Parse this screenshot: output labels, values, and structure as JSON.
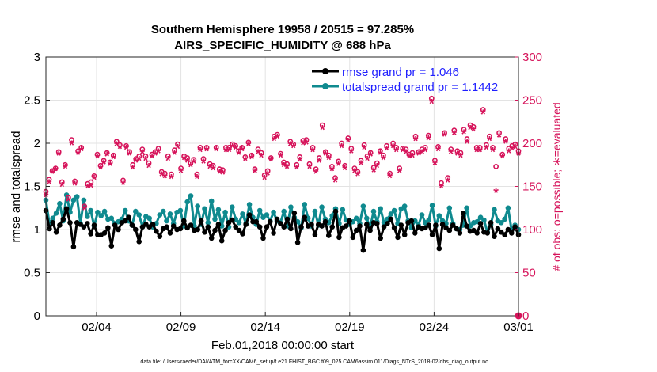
{
  "chart_data": {
    "type": "line",
    "title": "Southern Hemisphere 19958 / 20515 = 97.285%",
    "subtitle": "AIRS_SPECIFIC_HUMIDITY @ 688 hPa",
    "xlabel": "Feb.01,2018 00:00:00 start",
    "ylabel_left": "rmse and totalspread",
    "ylabel_right": "# of obs: o=possible; ∗=evaluated",
    "footnote": "data file: /Users/raeder/DAI/ATM_forcXX/CAM6_setup/f.e21.FHIST_BGC.f09_025.CAM6assim.011/Diags_NTrS_2018-02/obs_diag_output.nc",
    "xlim": [
      1.0,
      29.0
    ],
    "ylim_left": [
      0,
      3
    ],
    "ylim_right": [
      0,
      300
    ],
    "x_ticks": [
      4,
      9,
      14,
      19,
      24,
      29
    ],
    "x_tick_labels": [
      "02/04",
      "02/09",
      "02/14",
      "02/19",
      "02/24",
      "03/01"
    ],
    "y_ticks_left": [
      0,
      0.5,
      1,
      1.5,
      2,
      2.5,
      3
    ],
    "y_tick_labels_left": [
      "0",
      "0.5",
      "1",
      "1.5",
      "2",
      "2.5",
      "3"
    ],
    "y_ticks_right": [
      0,
      50,
      100,
      150,
      200,
      250,
      300
    ],
    "y_tick_labels_right": [
      "0",
      "50",
      "100",
      "150",
      "200",
      "250",
      "300"
    ],
    "grid": true,
    "legend_location": "top-right",
    "colors": {
      "rmse": "#000000",
      "spread": "#0f8a8f",
      "obs": "#d6135a",
      "legend_text": "#1f1fff"
    },
    "series": [
      {
        "name": "rmse grand pr = 1.046",
        "axis": "left",
        "values": [
          1.22,
          1.01,
          1.08,
          0.97,
          1.05,
          1.12,
          1.24,
          1.08,
          0.8,
          1.08,
          1.06,
          1.03,
          1.07,
          0.95,
          1.05,
          0.94,
          0.94,
          0.96,
          1.02,
          0.81,
          1.05,
          1.0,
          1.08,
          1.1,
          1.14,
          1.05,
          1.0,
          0.86,
          1.03,
          1.06,
          1.03,
          1.06,
          0.98,
          0.92,
          1.01,
          1.03,
          0.96,
          1.04,
          1.0,
          1.01,
          1.1,
          1.02,
          1.05,
          0.99,
          1.0,
          1.1,
          0.97,
          1.03,
          0.9,
          0.99,
          1.06,
          0.87,
          0.99,
          1.08,
          1.11,
          1.03,
          0.99,
          0.95,
          1.06,
          1.17,
          1.09,
          1.09,
          1.03,
          0.9,
          1.03,
          1.09,
          0.96,
          1.12,
          1.07,
          1.03,
          1.12,
          1.01,
          1.19,
          0.85,
          1.03,
          1.14,
          1.04,
          1.06,
          0.94,
          1.06,
          1.04,
          1.09,
          0.93,
          1.03,
          1.21,
          0.91,
          1.02,
          1.04,
          1.1,
          0.91,
          0.99,
          1.04,
          0.76,
          1.06,
          0.99,
          1.08,
          1.07,
          0.9,
          1.03,
          1.07,
          1.12,
          1.02,
          0.91,
          1.05,
          0.94,
          1.08,
          1.1,
          0.96,
          1.03,
          1.01,
          1.02,
          1.05,
          0.94,
          1.05,
          0.78,
          1.06,
          1.02,
          0.99,
          1.05,
          1.01,
          0.96,
          1.19,
          1.04,
          0.98,
          0.99,
          0.96,
          1.07,
          0.97,
          0.96,
          1.08,
          0.92,
          1.01,
          0.97,
          0.94,
          1.0,
          0.96,
          1.03,
          0.94
        ]
      },
      {
        "name": "totalspread grand pr = 1.1442",
        "axis": "left",
        "values": [
          1.34,
          1.07,
          1.13,
          1.19,
          1.3,
          1.1,
          1.4,
          1.2,
          1.34,
          1.38,
          1.07,
          1.34,
          1.15,
          1.22,
          1.04,
          1.2,
          1.16,
          1.21,
          1.12,
          1.13,
          1.07,
          1.09,
          1.12,
          1.22,
          1.1,
          1.05,
          1.21,
          1.17,
          1.03,
          1.15,
          1.13,
          1.03,
          1.07,
          1.17,
          1.21,
          1.1,
          1.18,
          1.07,
          1.2,
          1.22,
          1.04,
          1.32,
          1.39,
          1.04,
          1.27,
          1.06,
          1.24,
          1.08,
          1.33,
          1.12,
          1.23,
          1.04,
          1.2,
          1.03,
          1.26,
          1.12,
          1.08,
          1.18,
          1.07,
          1.29,
          1.14,
          1.06,
          1.22,
          1.14,
          1.17,
          1.1,
          1.2,
          1.1,
          1.08,
          1.21,
          1.04,
          1.26,
          1.14,
          1.09,
          1.02,
          1.29,
          1.13,
          1.04,
          1.21,
          1.05,
          1.26,
          1.12,
          1.08,
          1.16,
          1.24,
          1.07,
          1.23,
          1.11,
          1.06,
          1.09,
          1.13,
          1.07,
          1.27,
          1.13,
          1.02,
          1.21,
          1.09,
          1.24,
          1.08,
          1.12,
          1.18,
          1.22,
          1.07,
          1.24,
          1.27,
          1.1,
          1.02,
          1.1,
          1.05,
          1.17,
          1.08,
          1.11,
          1.28,
          1.04,
          1.16,
          1.1,
          1.07,
          1.25,
          1.07,
          1.01,
          1.0,
          1.05,
          1.25,
          1.04,
          1.08,
          1.09,
          1.14,
          1.11,
          0.97,
          1.06,
          1.23,
          1.1,
          1.08,
          1.12,
          1.25,
          0.99,
          1.05,
          1.0
        ]
      },
      {
        "name": "possible",
        "axis": "right",
        "marker": "o",
        "values": [
          144,
          158,
          168,
          171,
          190,
          155,
          175,
          137,
          204,
          156,
          191,
          195,
          127,
          153,
          155,
          162,
          187,
          174,
          180,
          189,
          178,
          186,
          202,
          198,
          157,
          197,
          190,
          175,
          182,
          185,
          193,
          185,
          177,
          187,
          190,
          194,
          167,
          165,
          185,
          164,
          192,
          199,
          171,
          185,
          183,
          177,
          181,
          164,
          195,
          182,
          195,
          176,
          174,
          195,
          170,
          169,
          195,
          195,
          199,
          197,
          191,
          195,
          184,
          201,
          186,
          170,
          193,
          189,
          163,
          168,
          183,
          208,
          210,
          188,
          178,
          176,
          202,
          199,
          175,
          184,
          203,
          204,
          176,
          195,
          170,
          183,
          221,
          190,
          186,
          173,
          160,
          179,
          200,
          174,
          206,
          194,
          171,
          167,
          180,
          198,
          185,
          189,
          172,
          177,
          191,
          186,
          197,
          165,
          200,
          195,
          171,
          194,
          193,
          187,
          189,
          208,
          190,
          193,
          195,
          209,
          252,
          180,
          196,
          154,
          212,
          160,
          193,
          215,
          191,
          189,
          216,
          205,
          221,
          219,
          195,
          195,
          239,
          198,
          208,
          195,
          173,
          212,
          187,
          205,
          194,
          197,
          199,
          191
        ]
      },
      {
        "name": "evaluated",
        "axis": "right",
        "marker": "*",
        "values": [
          140,
          155,
          167,
          170,
          188,
          152,
          173,
          135,
          200,
          153,
          189,
          193,
          125,
          150,
          151,
          160,
          185,
          172,
          178,
          187,
          176,
          184,
          199,
          196,
          154,
          195,
          188,
          172,
          180,
          182,
          190,
          182,
          174,
          185,
          188,
          191,
          164,
          162,
          182,
          161,
          189,
          196,
          168,
          183,
          180,
          175,
          179,
          161,
          192,
          179,
          193,
          173,
          171,
          193,
          167,
          166,
          192,
          192,
          197,
          195,
          189,
          193,
          182,
          199,
          184,
          168,
          190,
          186,
          160,
          165,
          181,
          205,
          208,
          186,
          175,
          173,
          199,
          197,
          172,
          181,
          200,
          201,
          173,
          192,
          167,
          180,
          218,
          188,
          183,
          170,
          157,
          176,
          197,
          171,
          203,
          191,
          168,
          164,
          177,
          195,
          182,
          187,
          169,
          174,
          189,
          183,
          194,
          162,
          197,
          192,
          168,
          192,
          190,
          185,
          186,
          205,
          188,
          190,
          192,
          206,
          248,
          177,
          193,
          150,
          210,
          157,
          190,
          212,
          188,
          186,
          213,
          202,
          218,
          216,
          192,
          192,
          236,
          195,
          205,
          192,
          145,
          209,
          185,
          202,
          191,
          194,
          196,
          188
        ]
      }
    ],
    "obs_endpoint_right": 0
  }
}
